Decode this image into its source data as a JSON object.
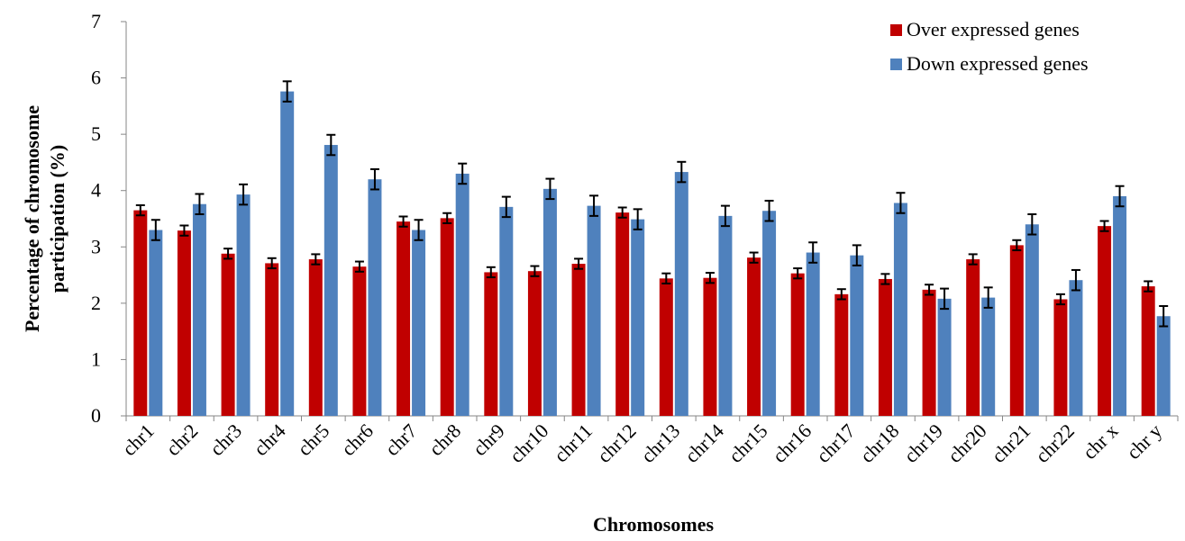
{
  "chart_data": {
    "type": "bar",
    "xlabel": "Chromosomes",
    "ylabel_lines": [
      "Percentage of chromosome",
      "participation (%)"
    ],
    "ylim": [
      0,
      7
    ],
    "yticks": [
      0,
      1,
      2,
      3,
      4,
      5,
      6,
      7
    ],
    "grid": false,
    "legend_position": "top-right",
    "categories": [
      "chr1",
      "chr2",
      "chr3",
      "chr4",
      "chr5",
      "chr6",
      "chr7",
      "chr8",
      "chr9",
      "chr10",
      "chr11",
      "chr12",
      "chr13",
      "chr14",
      "chr15",
      "chr16",
      "chr17",
      "chr18",
      "chr19",
      "chr20",
      "chr21",
      "chr22",
      "chr x",
      "chr y"
    ],
    "series": [
      {
        "name": "Over expressed genes",
        "color": "#C00000",
        "values": [
          3.65,
          3.29,
          2.88,
          2.71,
          2.78,
          2.65,
          3.45,
          3.51,
          2.55,
          2.57,
          2.7,
          3.61,
          2.44,
          2.45,
          2.81,
          2.53,
          2.16,
          2.43,
          2.24,
          2.78,
          3.03,
          2.07,
          3.37,
          2.3
        ],
        "errors": [
          0.09,
          0.09,
          0.09,
          0.09,
          0.09,
          0.09,
          0.09,
          0.09,
          0.09,
          0.09,
          0.09,
          0.09,
          0.09,
          0.09,
          0.09,
          0.09,
          0.09,
          0.09,
          0.09,
          0.09,
          0.09,
          0.09,
          0.09,
          0.09
        ]
      },
      {
        "name": "Down expressed genes",
        "color": "#4F81BD",
        "values": [
          3.3,
          3.76,
          3.93,
          5.76,
          4.81,
          4.2,
          3.3,
          4.3,
          3.71,
          4.03,
          3.73,
          3.49,
          4.33,
          3.55,
          3.64,
          2.9,
          2.85,
          3.78,
          2.08,
          2.1,
          3.4,
          2.41,
          3.9,
          1.77
        ],
        "errors": [
          0.18,
          0.18,
          0.18,
          0.18,
          0.18,
          0.18,
          0.18,
          0.18,
          0.18,
          0.18,
          0.18,
          0.18,
          0.18,
          0.18,
          0.18,
          0.18,
          0.18,
          0.18,
          0.18,
          0.18,
          0.18,
          0.18,
          0.18,
          0.18
        ]
      }
    ]
  }
}
